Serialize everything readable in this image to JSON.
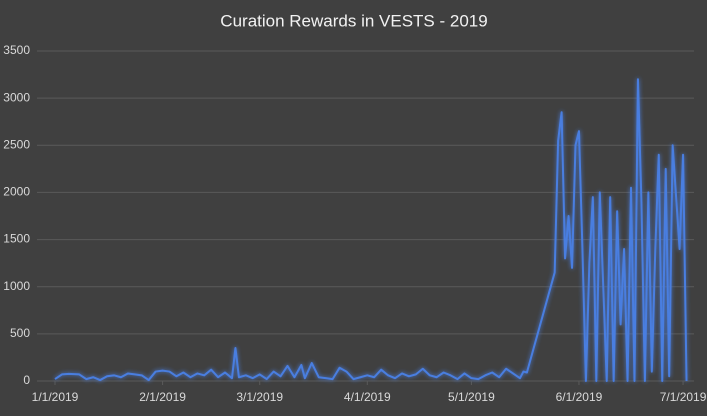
{
  "chart_data": {
    "type": "line",
    "title": "Curation Rewards in VESTS - 2019",
    "x": [
      "1/1/2019",
      "1/3/2019",
      "1/5/2019",
      "1/8/2019",
      "1/10/2019",
      "1/12/2019",
      "1/14/2019",
      "1/16/2019",
      "1/18/2019",
      "1/20/2019",
      "1/22/2019",
      "1/24/2019",
      "1/26/2019",
      "1/28/2019",
      "1/30/2019",
      "2/1/2019",
      "2/3/2019",
      "2/5/2019",
      "2/7/2019",
      "2/9/2019",
      "2/11/2019",
      "2/13/2019",
      "2/15/2019",
      "2/17/2019",
      "2/19/2019",
      "2/21/2019",
      "2/22/2019",
      "2/23/2019",
      "2/25/2019",
      "2/27/2019",
      "3/1/2019",
      "3/3/2019",
      "3/5/2019",
      "3/7/2019",
      "3/9/2019",
      "3/11/2019",
      "3/13/2019",
      "3/14/2019",
      "3/16/2019",
      "3/18/2019",
      "3/20/2019",
      "3/22/2019",
      "3/24/2019",
      "3/26/2019",
      "3/28/2019",
      "3/30/2019",
      "4/1/2019",
      "4/3/2019",
      "4/5/2019",
      "4/7/2019",
      "4/9/2019",
      "4/11/2019",
      "4/13/2019",
      "4/15/2019",
      "4/17/2019",
      "4/19/2019",
      "4/21/2019",
      "4/23/2019",
      "4/25/2019",
      "4/27/2019",
      "4/29/2019",
      "5/1/2019",
      "5/3/2019",
      "5/5/2019",
      "5/7/2019",
      "5/9/2019",
      "5/11/2019",
      "5/13/2019",
      "5/15/2019",
      "5/16/2019",
      "5/17/2019",
      "5/25/2019",
      "5/26/2019",
      "5/27/2019",
      "5/28/2019",
      "5/29/2019",
      "5/30/2019",
      "5/31/2019",
      "6/1/2019",
      "6/2/2019",
      "6/3/2019",
      "6/4/2019",
      "6/5/2019",
      "6/6/2019",
      "6/7/2019",
      "6/8/2019",
      "6/9/2019",
      "6/10/2019",
      "6/11/2019",
      "6/12/2019",
      "6/13/2019",
      "6/14/2019",
      "6/15/2019",
      "6/16/2019",
      "6/17/2019",
      "6/18/2019",
      "6/19/2019",
      "6/20/2019",
      "6/21/2019",
      "6/22/2019",
      "6/23/2019",
      "6/24/2019",
      "6/25/2019",
      "6/26/2019",
      "6/27/2019",
      "6/28/2019",
      "6/29/2019",
      "6/30/2019",
      "7/1/2019",
      "7/2/2019"
    ],
    "series": [
      {
        "name": "Curation Rewards",
        "color": "#4a7ee0",
        "values": [
          20,
          70,
          75,
          70,
          20,
          40,
          10,
          50,
          60,
          40,
          80,
          70,
          60,
          10,
          100,
          110,
          100,
          50,
          90,
          40,
          80,
          60,
          120,
          40,
          90,
          30,
          350,
          40,
          60,
          30,
          70,
          20,
          100,
          50,
          160,
          40,
          170,
          30,
          190,
          40,
          30,
          20,
          140,
          100,
          20,
          40,
          60,
          40,
          120,
          60,
          30,
          80,
          50,
          70,
          130,
          60,
          40,
          90,
          60,
          20,
          80,
          30,
          20,
          60,
          90,
          40,
          130,
          80,
          30,
          100,
          90,
          1150,
          2550,
          2850,
          1300,
          1750,
          1200,
          2500,
          2650,
          1400,
          0,
          1250,
          1950,
          0,
          2000,
          1000,
          0,
          1950,
          0,
          1800,
          600,
          1400,
          0,
          2050,
          0,
          3200,
          1900,
          0,
          2000,
          100,
          1400,
          2400,
          0,
          2250,
          50,
          2500,
          1950,
          1400,
          2400,
          0
        ]
      }
    ],
    "xlim": [
      "1/1/2019",
      "7/3/2019"
    ],
    "xticks": [
      "1/1/2019",
      "2/1/2019",
      "3/1/2019",
      "4/1/2019",
      "5/1/2019",
      "6/1/2019",
      "7/1/2019"
    ],
    "ylim": [
      0,
      3500
    ],
    "yticks": [
      0,
      500,
      1000,
      1500,
      2000,
      2500,
      3000,
      3500
    ],
    "grid": true
  }
}
